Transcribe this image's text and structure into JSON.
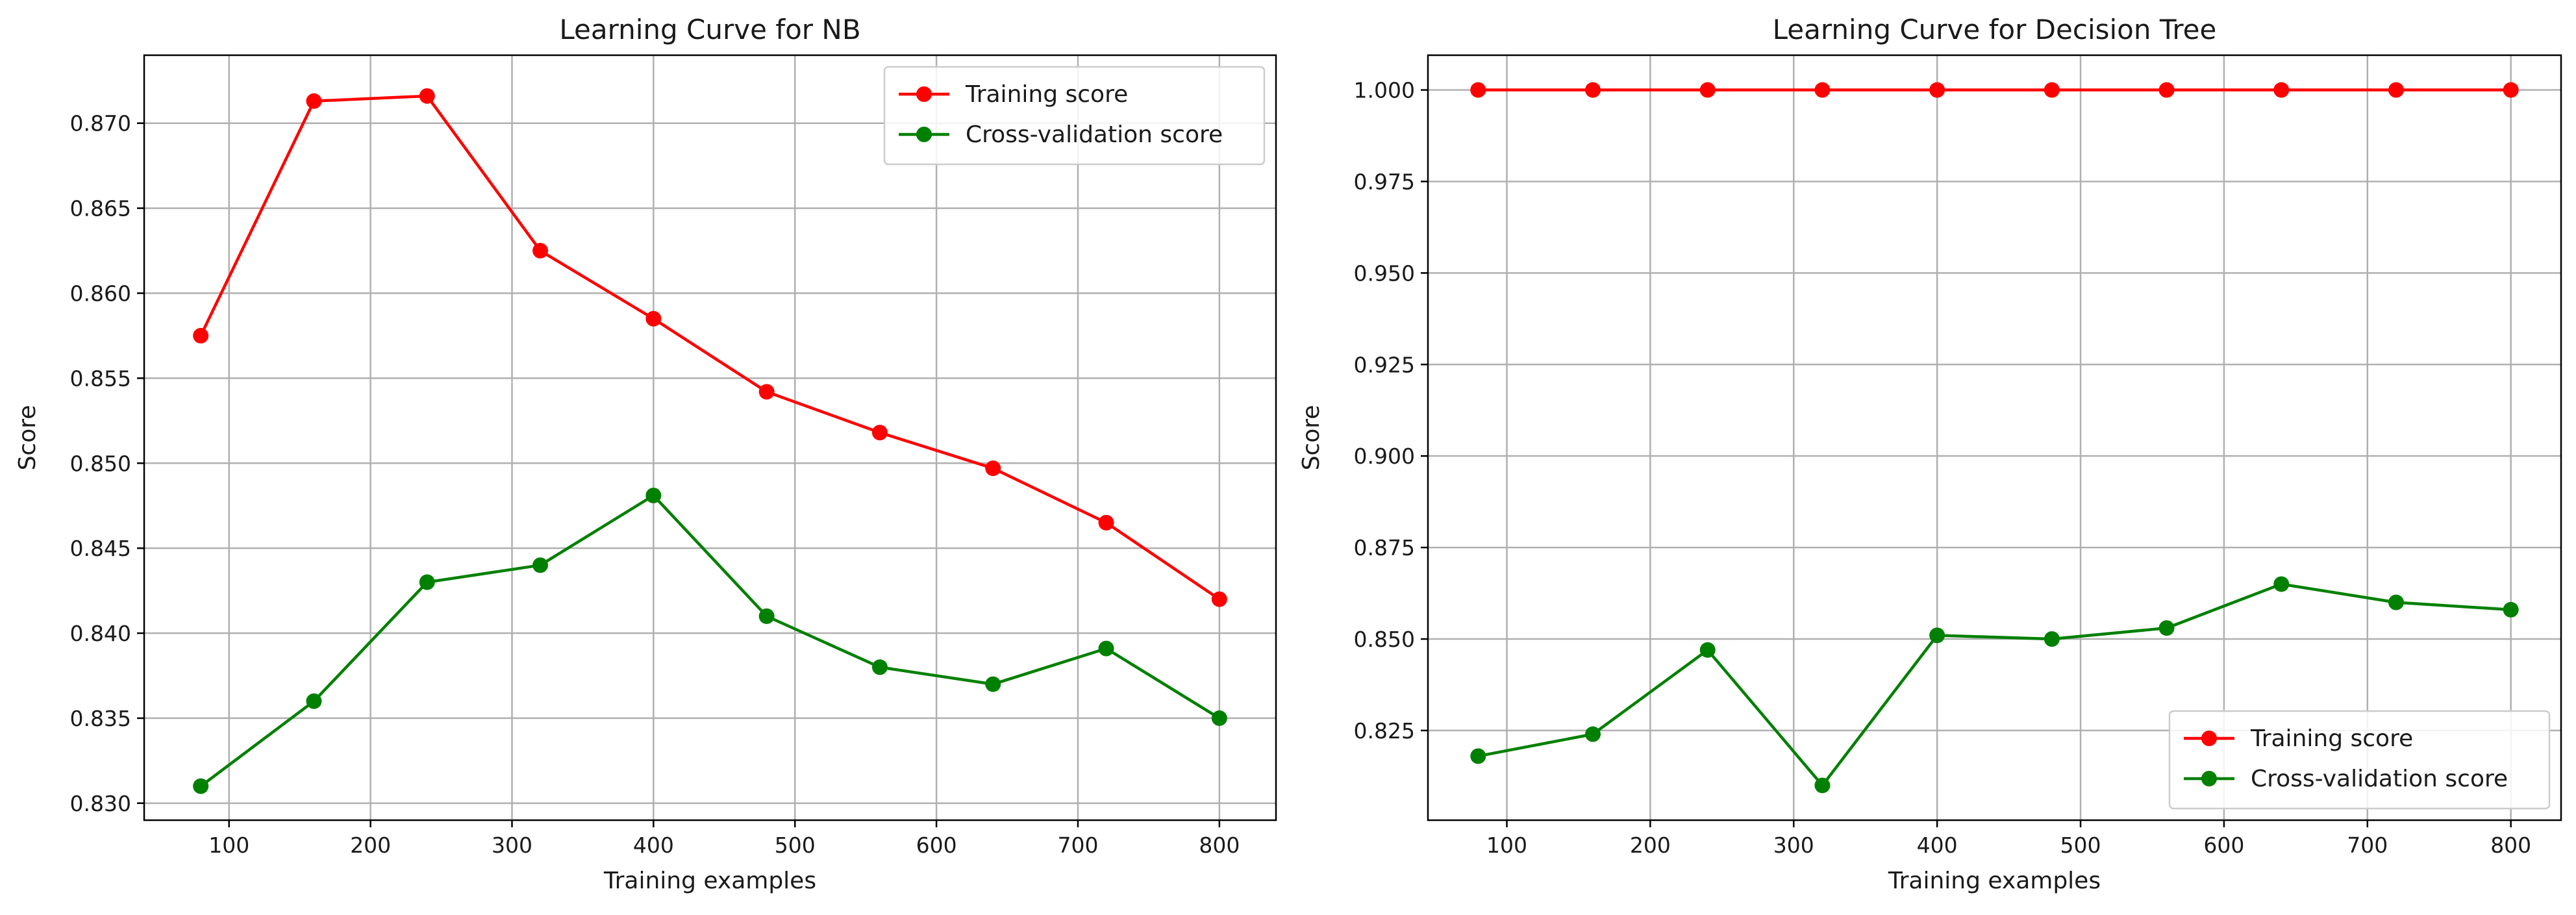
{
  "chart_data": [
    {
      "type": "line",
      "title": "Learning Curve for NB",
      "xlabel": "Training examples",
      "ylabel": "Score",
      "grid": true,
      "legend_position": "top-right",
      "xlim": [
        40,
        840
      ],
      "ylim": [
        0.829,
        0.874
      ],
      "xticks": [
        100,
        200,
        300,
        400,
        500,
        600,
        700,
        800
      ],
      "yticks": [
        0.83,
        0.835,
        0.84,
        0.845,
        0.85,
        0.855,
        0.86,
        0.865,
        0.87
      ],
      "x": [
        80,
        160,
        240,
        320,
        400,
        480,
        560,
        640,
        720,
        800
      ],
      "series": [
        {
          "name": "Training score",
          "color": "#ff0000",
          "values": [
            0.8575,
            0.8713,
            0.8716,
            0.8625,
            0.8585,
            0.8542,
            0.8518,
            0.8497,
            0.8465,
            0.842
          ]
        },
        {
          "name": "Cross-validation score",
          "color": "#008000",
          "values": [
            0.831,
            0.836,
            0.843,
            0.844,
            0.8481,
            0.841,
            0.838,
            0.837,
            0.8391,
            0.835
          ]
        }
      ]
    },
    {
      "type": "line",
      "title": "Learning Curve for Decision Tree",
      "xlabel": "Training examples",
      "ylabel": "Score",
      "grid": true,
      "legend_position": "bottom-right",
      "xlim": [
        45,
        835
      ],
      "ylim": [
        0.8005,
        1.0095
      ],
      "xticks": [
        100,
        200,
        300,
        400,
        500,
        600,
        700,
        800
      ],
      "yticks": [
        0.825,
        0.85,
        0.875,
        0.9,
        0.925,
        0.95,
        0.975,
        1.0
      ],
      "x": [
        80,
        160,
        240,
        320,
        400,
        480,
        560,
        640,
        720,
        800
      ],
      "series": [
        {
          "name": "Training score",
          "color": "#ff0000",
          "values": [
            1.0,
            1.0,
            1.0,
            1.0,
            1.0,
            1.0,
            1.0,
            1.0,
            1.0,
            1.0
          ]
        },
        {
          "name": "Cross-validation score",
          "color": "#008000",
          "values": [
            0.818,
            0.824,
            0.847,
            0.81,
            0.851,
            0.85,
            0.853,
            0.865,
            0.86,
            0.858
          ]
        }
      ]
    }
  ]
}
